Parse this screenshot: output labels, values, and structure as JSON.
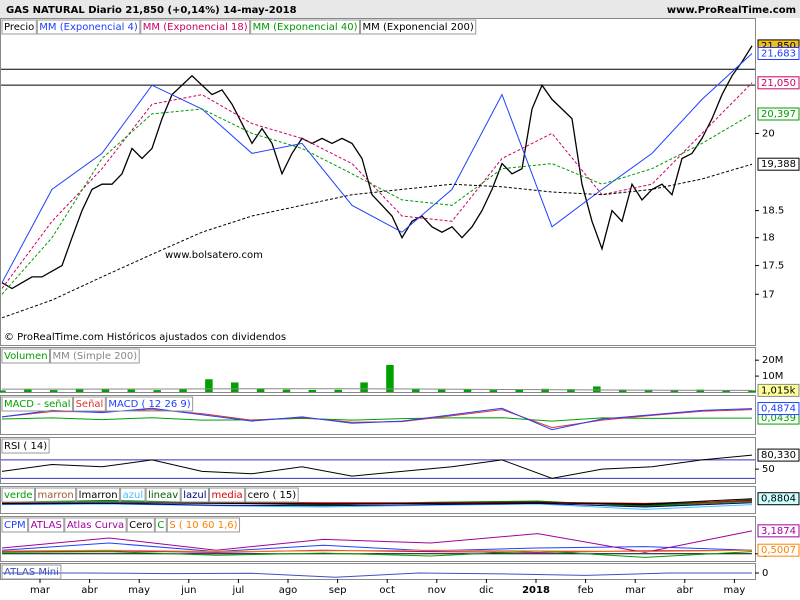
{
  "header": {
    "title": "GAS NATURAL   Diario   21,850 (+0,14%)   14-may-2018",
    "site": "www.ProRealTime.com",
    "watermark": "www.bolsatero.com",
    "footer": "© ProRealTime.com Históricos ajustados con dividendos"
  },
  "x_labels": [
    "mar",
    "abr",
    "may",
    "jun",
    "jul",
    "ago",
    "sep",
    "oct",
    "nov",
    "dic",
    "2018",
    "feb",
    "mar",
    "abr",
    "may"
  ],
  "x_label_bold": [
    10
  ],
  "chart_data": [
    {
      "type": "line",
      "log": true,
      "ylim": [
        16.43,
        22.07
      ],
      "yticks": [
        17,
        17.5,
        18,
        18.5,
        20
      ],
      "hlines": [
        21.34,
        21.0
      ],
      "series": [
        {
          "name": "Precio",
          "color": "#000000",
          "box": "#f0c020",
          "last_label": "21,850",
          "values": [
            17.2,
            17.1,
            17.2,
            17.3,
            17.3,
            17.4,
            17.5,
            18.0,
            18.5,
            18.9,
            19.0,
            19.0,
            19.2,
            19.7,
            19.5,
            19.7,
            20.3,
            20.8,
            21.0,
            21.2,
            21.0,
            20.8,
            20.9,
            20.6,
            20.2,
            19.8,
            20.1,
            19.8,
            19.2,
            19.6,
            19.9,
            19.8,
            19.9,
            19.8,
            19.9,
            19.8,
            19.5,
            18.8,
            18.6,
            18.4,
            18.0,
            18.3,
            18.4,
            18.2,
            18.1,
            18.2,
            18.0,
            18.2,
            18.5,
            18.9,
            19.4,
            19.2,
            19.3,
            20.5,
            21.0,
            20.7,
            20.5,
            20.3,
            19.0,
            18.3,
            17.8,
            18.5,
            18.3,
            19.0,
            18.7,
            18.9,
            19.0,
            18.8,
            19.5,
            19.6,
            19.9,
            20.3,
            20.8,
            21.2,
            21.5,
            21.85
          ]
        },
        {
          "name": "MM (Exponencial 4)",
          "color": "#2040ff",
          "last_label": "21,683",
          "values": [
            17.2,
            18.9,
            19.6,
            21.0,
            20.5,
            19.6,
            19.8,
            18.6,
            18.1,
            18.9,
            20.8,
            18.2,
            18.9,
            19.6,
            20.7,
            21.683
          ]
        },
        {
          "name": "MM (Exponencial 18)",
          "color": "#cc0066",
          "dash": true,
          "last_label": "21,050",
          "values": [
            17.1,
            18.3,
            19.3,
            20.6,
            20.8,
            20.2,
            19.9,
            19.4,
            18.4,
            18.3,
            19.5,
            20.0,
            18.8,
            19.0,
            20.0,
            21.05
          ]
        },
        {
          "name": "MM (Exponencial 40)",
          "color": "#009900",
          "dash": true,
          "last_label": "20,397",
          "values": [
            17.0,
            18.0,
            19.5,
            20.4,
            20.5,
            20.0,
            19.7,
            19.2,
            18.7,
            18.6,
            19.3,
            19.4,
            19.0,
            19.3,
            19.8,
            20.397
          ]
        },
        {
          "name": "MM (Exponencial 200)",
          "color": "#000000",
          "dash": true,
          "last_label": "19,388",
          "values": [
            16.6,
            16.9,
            17.3,
            17.7,
            18.1,
            18.4,
            18.6,
            18.8,
            18.9,
            19.0,
            18.95,
            18.85,
            18.8,
            18.9,
            19.1,
            19.388
          ]
        }
      ]
    },
    {
      "type": "bar",
      "ylim": [
        0,
        22
      ],
      "yticks": [
        {
          "value": 20,
          "label": "20M"
        },
        {
          "value": 10,
          "label": "10M"
        }
      ],
      "series": [
        {
          "name": "Volumen",
          "color": "#00a000",
          "values": [
            1,
            1.5,
            1.2,
            2,
            1.8,
            1.5,
            1.2,
            2,
            8,
            6,
            2,
            1.5,
            1.3,
            1.4,
            6,
            17,
            2,
            1.5,
            1.8,
            1.2,
            1.5,
            2,
            1.8,
            3.5,
            1.6,
            1.4,
            1.3,
            1.5,
            1.2,
            1.0
          ]
        },
        {
          "name": "MM (Simple 200)",
          "color": "#888888",
          "box": "#ffff99",
          "last_label": "1,015k",
          "values": [
            1.8,
            1.8,
            1.9,
            2.0,
            2.0,
            1.9,
            1.6,
            1.3,
            1.1,
            1.015
          ]
        }
      ]
    },
    {
      "type": "line",
      "ylim": [
        -0.7,
        0.7
      ],
      "series": [
        {
          "name": "MACD - señal",
          "color": "#00a000",
          "last_label": "0,0439",
          "values": [
            0.0,
            0.05,
            -0.03,
            0.06,
            -0.05,
            -0.04,
            0.03,
            -0.05,
            0.02,
            0.05,
            0.06,
            -0.1,
            0.05,
            0.03,
            0.04,
            0.0439
          ]
        },
        {
          "name": "Señal",
          "color": "#e03030",
          "values": [
            0.1,
            0.35,
            0.33,
            0.44,
            0.25,
            -0.06,
            0.07,
            -0.15,
            -0.12,
            0.15,
            0.44,
            -0.4,
            -0.05,
            0.17,
            0.36,
            0.44
          ]
        },
        {
          "name": "MACD ( 12 26 9)",
          "color": "#2040ff",
          "last_label": "0,4874",
          "values": [
            0.1,
            0.4,
            0.3,
            0.5,
            0.2,
            -0.1,
            0.1,
            -0.2,
            -0.1,
            0.2,
            0.5,
            -0.5,
            0.0,
            0.2,
            0.4,
            0.4874
          ]
        }
      ]
    },
    {
      "type": "line",
      "ylim": [
        20,
        100
      ],
      "yticks": [
        50
      ],
      "hlines": [
        70,
        30
      ],
      "series": [
        {
          "name": "RSI ( 14)",
          "color": "#000000",
          "last_label": "80,330",
          "values": [
            45,
            60,
            55,
            70,
            45,
            40,
            55,
            35,
            45,
            55,
            70,
            30,
            50,
            55,
            70,
            80.33
          ]
        }
      ]
    },
    {
      "type": "line",
      "ylim": [
        -1.5,
        1.5
      ],
      "series": [
        {
          "name": "verde",
          "color": "#00a000",
          "values": [
            0.3,
            0.6,
            0.2,
            -0.2,
            0.3,
            0.5,
            -0.4,
            0.4
          ]
        },
        {
          "name": "marron",
          "color": "#a05a2c",
          "values": [
            0.2,
            0.4,
            0.3,
            0.0,
            0.2,
            0.3,
            -0.2,
            0.5
          ]
        },
        {
          "name": "lmarron",
          "color": "#000000",
          "values": [
            0.1,
            0.3,
            0.2,
            0.1,
            0.1,
            0.2,
            -0.1,
            0.6
          ]
        },
        {
          "name": "azul",
          "color": "#40c0ff",
          "values": [
            -0.1,
            0.0,
            -0.3,
            -0.5,
            -0.2,
            0.0,
            -0.9,
            -0.1
          ]
        },
        {
          "name": "lineav",
          "color": "#006000",
          "values": [
            0.2,
            0.5,
            0.2,
            -0.1,
            0.2,
            0.4,
            -0.3,
            0.7
          ]
        },
        {
          "name": "lazul",
          "color": "#000080",
          "values": [
            0.0,
            0.1,
            -0.2,
            -0.3,
            -0.1,
            0.1,
            -0.5,
            0.2
          ]
        },
        {
          "name": "media",
          "color": "#e00000",
          "values": [
            0.2,
            0.3,
            0.3,
            0.2,
            0.2,
            0.3,
            0.1,
            0.5
          ]
        },
        {
          "name": "cero ( 15)",
          "color": "#000000",
          "box": "#ccffff",
          "last_label": "0,8804",
          "values": [
            0.1,
            0.2,
            0.1,
            0.0,
            0.1,
            0.2,
            0.0,
            0.8804
          ]
        }
      ]
    },
    {
      "type": "line",
      "ylim": [
        -1,
        4
      ],
      "yticks": [
        0
      ],
      "series": [
        {
          "name": "CPM",
          "color": "#2040ff",
          "values": [
            0.5,
            1.5,
            0.3,
            1.2,
            0.4,
            0.8,
            1.0,
            0.5
          ]
        },
        {
          "name": "ATLAS",
          "color": "#a000a0",
          "values": [
            0.3,
            0.4,
            0.2,
            0.5,
            0.3,
            0.2,
            0.4,
            0.5
          ]
        },
        {
          "name": "Atlas Curva",
          "color": "#a000a0",
          "last_label": "3,1874",
          "values": [
            0.8,
            2.2,
            0.5,
            2.0,
            1.5,
            2.8,
            0.2,
            3.1874
          ]
        },
        {
          "name": "Cero",
          "color": "#000000",
          "values": [
            0,
            0,
            0,
            0,
            0,
            0,
            0,
            0
          ]
        },
        {
          "name": "C",
          "color": "#00a000",
          "values": [
            0.2,
            0.3,
            -0.2,
            0.1,
            -0.3,
            0.4,
            -0.5,
            0.3
          ]
        },
        {
          "name": "S ( 10 60 1,6)",
          "color": "#ff8000",
          "last_label": "0,5007",
          "values": [
            0.4,
            0.5,
            0.3,
            0.4,
            0.5,
            0.4,
            0.3,
            0.5007
          ]
        }
      ]
    },
    {
      "type": "line",
      "ylim": [
        -2,
        1
      ],
      "yticks": [
        0
      ],
      "series": [
        {
          "name": "ATLAS Mini",
          "color": "#4050c0",
          "values": [
            0,
            0,
            -0.2,
            -0.1,
            -1.4,
            0,
            -0.3,
            -0.8,
            0,
            0
          ]
        }
      ]
    }
  ]
}
